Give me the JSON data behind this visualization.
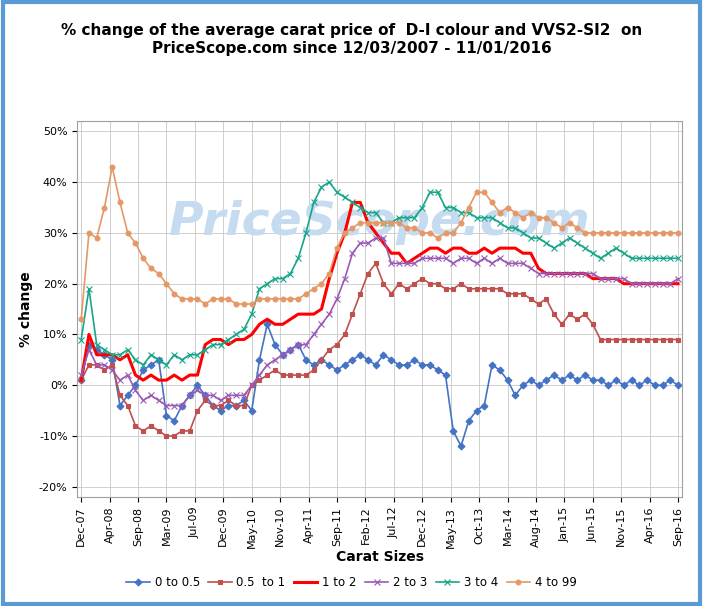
{
  "title": "% change of the average carat price of  D-I colour and VVS2-SI2  on\nPriceScope.com since 12/03/2007 - 11/01/2016",
  "xlabel": "Carat Sizes",
  "ylabel": "% change",
  "watermark": "PriceScope.com",
  "ylim": [
    -0.22,
    0.52
  ],
  "yticks": [
    -0.2,
    -0.1,
    0.0,
    0.1,
    0.2,
    0.3,
    0.4,
    0.5
  ],
  "ytick_labels": [
    "-20%",
    "-10%",
    "0%",
    "10%",
    "20%",
    "30%",
    "40%",
    "50%"
  ],
  "series": {
    "0 to 0.5": {
      "color": "#4472C4",
      "marker": "D",
      "markersize": 3.5,
      "linewidth": 1.2,
      "values": [
        0.01,
        0.08,
        0.07,
        0.06,
        0.05,
        -0.04,
        -0.02,
        0.0,
        0.03,
        0.04,
        0.05,
        -0.06,
        -0.07,
        -0.04,
        -0.02,
        0.0,
        -0.02,
        -0.04,
        -0.05,
        -0.04,
        -0.04,
        -0.03,
        -0.05,
        0.05,
        0.12,
        0.08,
        0.06,
        0.07,
        0.08,
        0.05,
        0.04,
        0.05,
        0.04,
        0.03,
        0.04,
        0.05,
        0.06,
        0.05,
        0.04,
        0.06,
        0.05,
        0.04,
        0.04,
        0.05,
        0.04,
        0.04,
        0.03,
        0.02,
        -0.09,
        -0.12,
        -0.07,
        -0.05,
        -0.04,
        0.04,
        0.03,
        0.01,
        -0.02,
        0.0,
        0.01,
        0.0,
        0.01,
        0.02,
        0.01,
        0.02,
        0.01,
        0.02,
        0.01,
        0.01,
        0.0,
        0.01,
        0.0,
        0.01,
        0.0,
        0.01,
        0.0,
        0.0,
        0.01,
        0.0
      ]
    },
    "0.5  to 1": {
      "color": "#C0504D",
      "marker": "s",
      "markersize": 3.5,
      "linewidth": 1.2,
      "values": [
        0.01,
        0.04,
        0.04,
        0.03,
        0.04,
        -0.02,
        -0.04,
        -0.08,
        -0.09,
        -0.08,
        -0.09,
        -0.1,
        -0.1,
        -0.09,
        -0.09,
        -0.05,
        -0.03,
        -0.04,
        -0.04,
        -0.03,
        -0.04,
        -0.04,
        0.0,
        0.01,
        0.02,
        0.03,
        0.02,
        0.02,
        0.02,
        0.02,
        0.03,
        0.05,
        0.07,
        0.08,
        0.1,
        0.14,
        0.18,
        0.22,
        0.24,
        0.2,
        0.18,
        0.2,
        0.19,
        0.2,
        0.21,
        0.2,
        0.2,
        0.19,
        0.19,
        0.2,
        0.19,
        0.19,
        0.19,
        0.19,
        0.19,
        0.18,
        0.18,
        0.18,
        0.17,
        0.16,
        0.17,
        0.14,
        0.12,
        0.14,
        0.13,
        0.14,
        0.12,
        0.09,
        0.09,
        0.09,
        0.09,
        0.09,
        0.09,
        0.09,
        0.09,
        0.09,
        0.09,
        0.09
      ]
    },
    "1 to 2": {
      "color": "#FF0000",
      "marker": null,
      "markersize": 0,
      "linewidth": 2.2,
      "values": [
        0.01,
        0.1,
        0.06,
        0.06,
        0.06,
        0.05,
        0.06,
        0.02,
        0.01,
        0.02,
        0.01,
        0.01,
        0.02,
        0.01,
        0.02,
        0.02,
        0.08,
        0.09,
        0.09,
        0.08,
        0.09,
        0.09,
        0.1,
        0.12,
        0.13,
        0.12,
        0.12,
        0.13,
        0.14,
        0.14,
        0.14,
        0.15,
        0.21,
        0.26,
        0.3,
        0.36,
        0.36,
        0.32,
        0.3,
        0.28,
        0.26,
        0.26,
        0.24,
        0.25,
        0.26,
        0.27,
        0.27,
        0.26,
        0.27,
        0.27,
        0.26,
        0.26,
        0.27,
        0.26,
        0.27,
        0.27,
        0.27,
        0.26,
        0.26,
        0.23,
        0.22,
        0.22,
        0.22,
        0.22,
        0.22,
        0.22,
        0.21,
        0.21,
        0.21,
        0.21,
        0.2,
        0.2,
        0.2,
        0.2,
        0.2,
        0.2,
        0.2,
        0.2
      ]
    },
    "2 to 3": {
      "color": "#9B59B6",
      "marker": "x",
      "markersize": 4,
      "linewidth": 1.2,
      "values": [
        0.02,
        0.07,
        0.04,
        0.04,
        0.03,
        0.01,
        0.02,
        -0.01,
        -0.03,
        -0.02,
        -0.03,
        -0.04,
        -0.04,
        -0.04,
        -0.02,
        -0.01,
        -0.02,
        -0.02,
        -0.03,
        -0.02,
        -0.02,
        -0.02,
        0.0,
        0.02,
        0.04,
        0.05,
        0.06,
        0.07,
        0.08,
        0.08,
        0.1,
        0.12,
        0.14,
        0.17,
        0.21,
        0.26,
        0.28,
        0.28,
        0.29,
        0.29,
        0.24,
        0.24,
        0.24,
        0.24,
        0.25,
        0.25,
        0.25,
        0.25,
        0.24,
        0.25,
        0.25,
        0.24,
        0.25,
        0.24,
        0.25,
        0.24,
        0.24,
        0.24,
        0.23,
        0.22,
        0.22,
        0.22,
        0.22,
        0.22,
        0.22,
        0.22,
        0.22,
        0.21,
        0.21,
        0.21,
        0.21,
        0.2,
        0.2,
        0.2,
        0.2,
        0.2,
        0.2,
        0.21
      ]
    },
    "3 to 4": {
      "color": "#17A589",
      "marker": "x",
      "markersize": 4,
      "linewidth": 1.2,
      "values": [
        0.09,
        0.19,
        0.08,
        0.07,
        0.06,
        0.06,
        0.07,
        0.05,
        0.04,
        0.06,
        0.05,
        0.04,
        0.06,
        0.05,
        0.06,
        0.06,
        0.07,
        0.08,
        0.08,
        0.09,
        0.1,
        0.11,
        0.14,
        0.19,
        0.2,
        0.21,
        0.21,
        0.22,
        0.25,
        0.3,
        0.36,
        0.39,
        0.4,
        0.38,
        0.37,
        0.36,
        0.35,
        0.34,
        0.34,
        0.32,
        0.32,
        0.33,
        0.33,
        0.33,
        0.35,
        0.38,
        0.38,
        0.35,
        0.35,
        0.34,
        0.34,
        0.33,
        0.33,
        0.33,
        0.32,
        0.31,
        0.31,
        0.3,
        0.29,
        0.29,
        0.28,
        0.27,
        0.28,
        0.29,
        0.28,
        0.27,
        0.26,
        0.25,
        0.26,
        0.27,
        0.26,
        0.25,
        0.25,
        0.25,
        0.25,
        0.25,
        0.25,
        0.25
      ]
    },
    "4 to 99": {
      "color": "#E59866",
      "marker": "o",
      "markersize": 3.5,
      "linewidth": 1.2,
      "values": [
        0.13,
        0.3,
        0.29,
        0.35,
        0.43,
        0.36,
        0.3,
        0.28,
        0.25,
        0.23,
        0.22,
        0.2,
        0.18,
        0.17,
        0.17,
        0.17,
        0.16,
        0.17,
        0.17,
        0.17,
        0.16,
        0.16,
        0.16,
        0.17,
        0.17,
        0.17,
        0.17,
        0.17,
        0.17,
        0.18,
        0.19,
        0.2,
        0.22,
        0.27,
        0.3,
        0.31,
        0.32,
        0.32,
        0.32,
        0.32,
        0.32,
        0.32,
        0.31,
        0.31,
        0.3,
        0.3,
        0.29,
        0.3,
        0.3,
        0.32,
        0.35,
        0.38,
        0.38,
        0.36,
        0.34,
        0.35,
        0.34,
        0.33,
        0.34,
        0.33,
        0.33,
        0.32,
        0.31,
        0.32,
        0.31,
        0.3,
        0.3,
        0.3,
        0.3,
        0.3,
        0.3,
        0.3,
        0.3,
        0.3,
        0.3,
        0.3,
        0.3,
        0.3
      ]
    }
  },
  "x_labels": [
    "Dec-07",
    "Apr-08",
    "Sep-08",
    "Mar-09",
    "Jul-09",
    "Dec-09",
    "May-10",
    "Nov-10",
    "Apr-11",
    "Sep-11",
    "Feb-12",
    "Jul-12",
    "Dec-12",
    "May-13",
    "Oct-13",
    "Mar-14",
    "Aug-14",
    "Jan-15",
    "Jun-15",
    "Nov-15",
    "Apr-16",
    "Sep-16"
  ],
  "n_points": 78,
  "bg_color": "#FFFFFF",
  "border_color": "#5B9BD5",
  "grid_color": "#C8C8C8",
  "watermark_color": "#C5DBF0",
  "title_fontsize": 11,
  "axis_label_fontsize": 10,
  "tick_fontsize": 8,
  "legend_fontsize": 8.5
}
